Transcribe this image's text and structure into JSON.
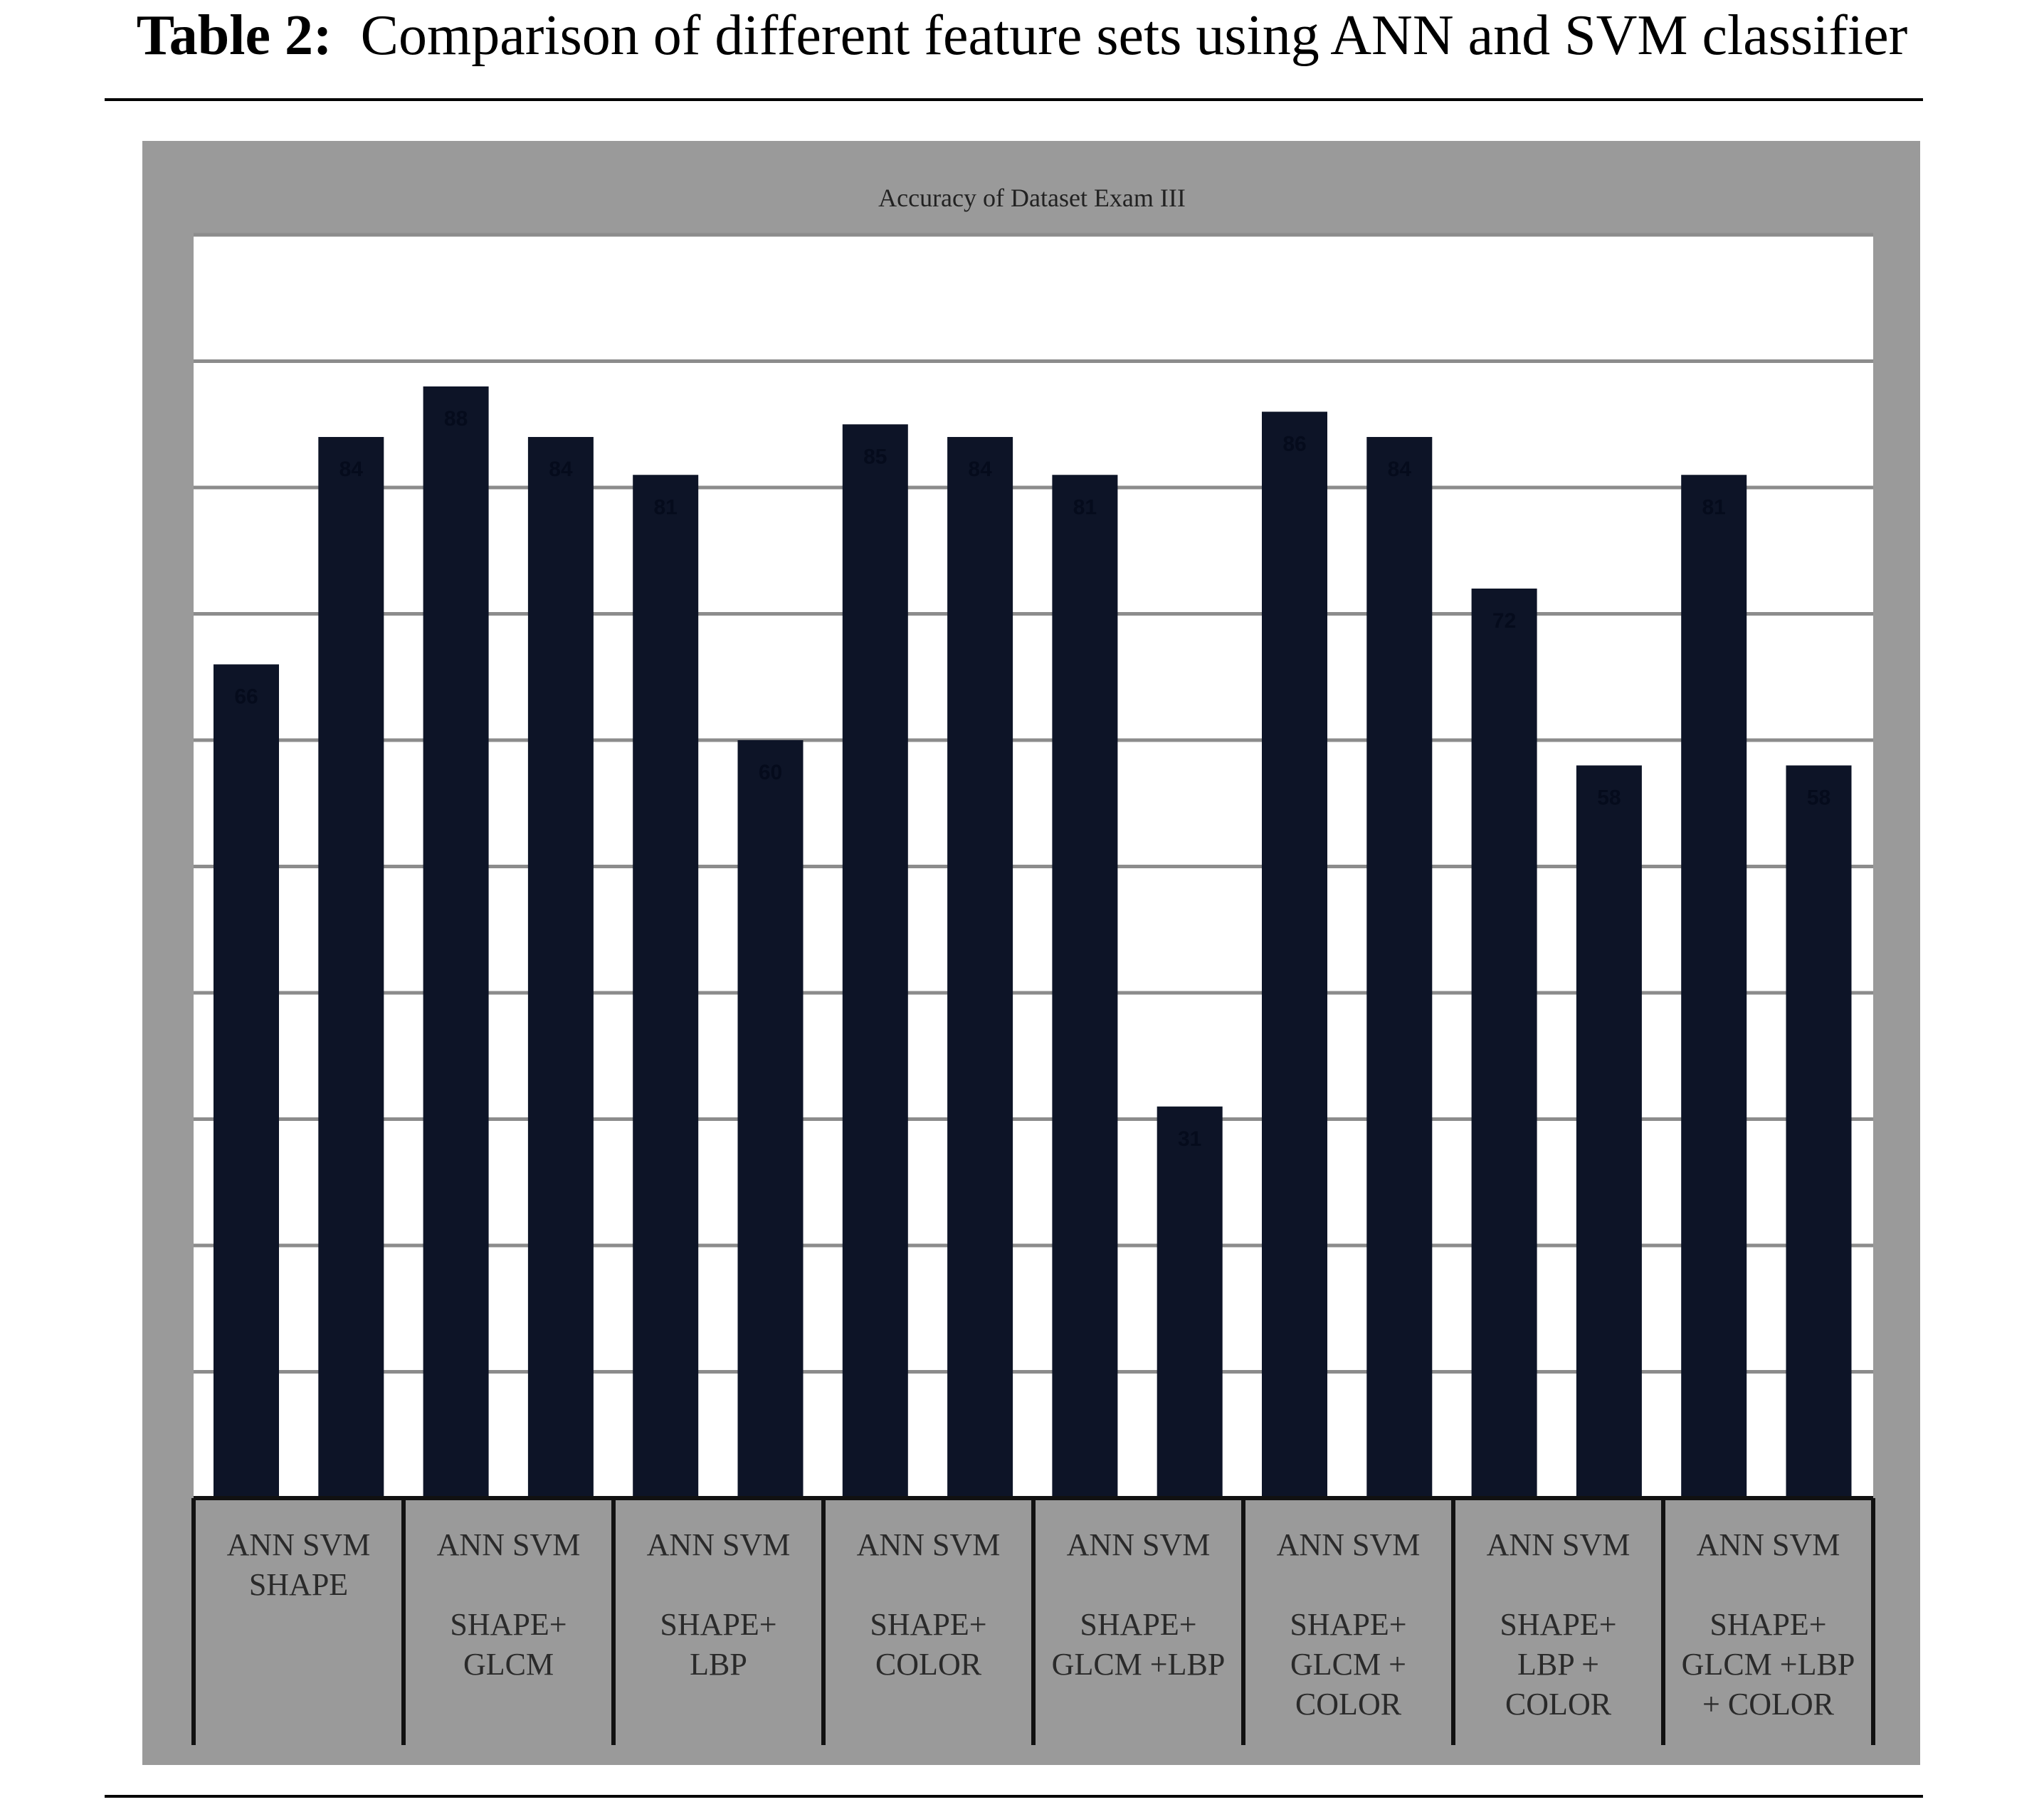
{
  "caption": {
    "label": "Table 2:",
    "text": "Comparison of different feature sets using ANN and SVM classifier"
  },
  "colors": {
    "bar": "#0d1427",
    "plot_background": "#ffffff",
    "frame_background": "#9a9a9a",
    "gridline": "#8c8c8c",
    "axis": "#111111"
  },
  "chart_data": {
    "type": "bar",
    "title": "Accuracy of Dataset Exam III",
    "xlabel": "",
    "ylabel": "",
    "ylim": [
      0,
      100
    ],
    "grid": true,
    "legend": "none",
    "groups": [
      {
        "label_lines": [
          "ANN SVM",
          "SHAPE"
        ]
      },
      {
        "label_lines": [
          "ANN SVM",
          "",
          "SHAPE+",
          "GLCM"
        ]
      },
      {
        "label_lines": [
          "ANN SVM",
          "",
          "SHAPE+",
          "LBP"
        ]
      },
      {
        "label_lines": [
          "ANN SVM",
          "",
          "SHAPE+",
          "COLOR"
        ]
      },
      {
        "label_lines": [
          "ANN SVM",
          "",
          "SHAPE+",
          "GLCM +LBP"
        ]
      },
      {
        "label_lines": [
          "ANN SVM",
          "",
          "SHAPE+",
          "GLCM +",
          "COLOR"
        ]
      },
      {
        "label_lines": [
          "ANN SVM",
          "",
          "SHAPE+",
          "LBP +",
          "COLOR"
        ]
      },
      {
        "label_lines": [
          "ANN SVM",
          "",
          "SHAPE+",
          "GLCM +LBP",
          "+ COLOR"
        ]
      }
    ],
    "bars": [
      {
        "classifier": "ANN",
        "value": 66
      },
      {
        "classifier": "SVM",
        "value": 84
      },
      {
        "classifier": "ANN",
        "value": 88
      },
      {
        "classifier": "SVM",
        "value": 84
      },
      {
        "classifier": "ANN",
        "value": 81
      },
      {
        "classifier": "SVM",
        "value": 60
      },
      {
        "classifier": "ANN",
        "value": 85
      },
      {
        "classifier": "SVM",
        "value": 84
      },
      {
        "classifier": "ANN",
        "value": 81
      },
      {
        "classifier": "SVM",
        "value": 31
      },
      {
        "classifier": "ANN",
        "value": 86
      },
      {
        "classifier": "SVM",
        "value": 84
      },
      {
        "classifier": "ANN",
        "value": 72
      },
      {
        "classifier": "SVM",
        "value": 58
      },
      {
        "classifier": "ANN",
        "value": 81
      },
      {
        "classifier": "SVM",
        "value": 58
      }
    ]
  }
}
